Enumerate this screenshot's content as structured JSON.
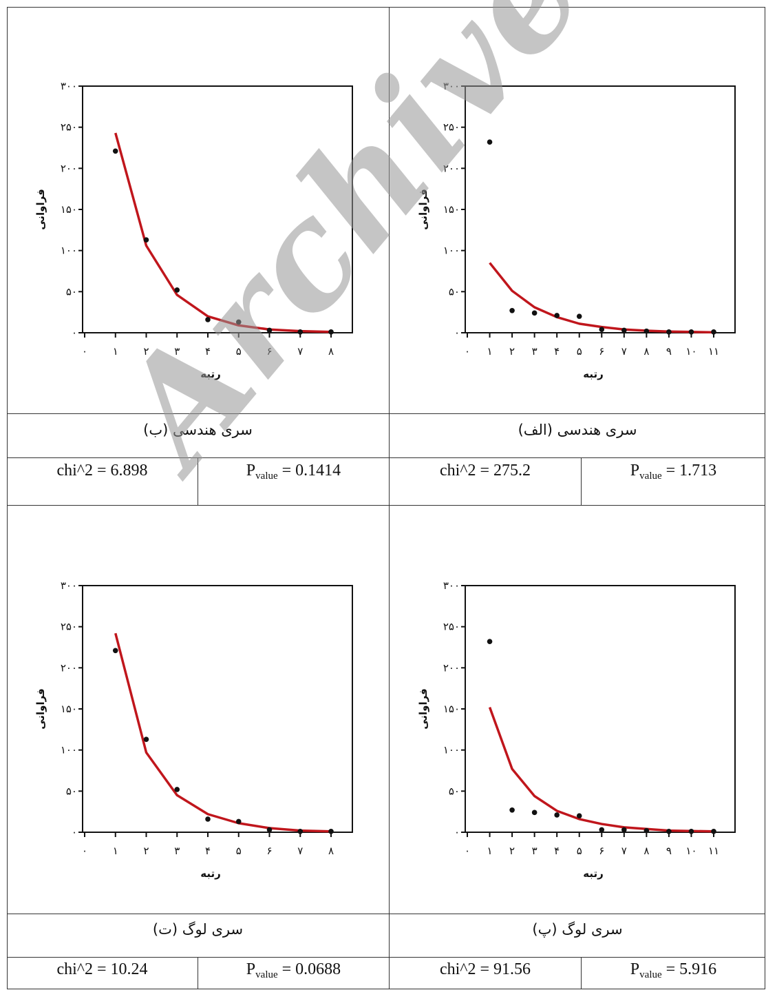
{
  "watermark": "Archive of SID",
  "panels": [
    {
      "id": "alef",
      "caption": "سری هندسی (الف)",
      "chi_label": "chi^2 = 275.2",
      "p_label": "P",
      "p_sub": "value",
      "p_value": " = 1.713"
    },
    {
      "id": "be",
      "caption": "سری هندسی (ب)",
      "chi_label": "chi^2 = 6.898",
      "p_label": "P",
      "p_sub": "value",
      "p_value": " = 0.1414"
    },
    {
      "id": "pe",
      "caption": "سری لوگ (پ)",
      "chi_label": "chi^2 = 91.56",
      "p_label": "P",
      "p_sub": "value",
      "p_value": " = 5.916"
    },
    {
      "id": "te",
      "caption": "سری لوگ (ت)",
      "chi_label": "chi^2 = 10.24",
      "p_label": "P",
      "p_sub": "value",
      "p_value": " = 0.0688"
    }
  ],
  "chart_data": [
    {
      "id": "alef",
      "type": "scatter",
      "xlabel": "رتبه",
      "ylabel": "فراوانی",
      "xlim": [
        0,
        11
      ],
      "ylim": [
        0,
        300
      ],
      "x_ticks": [
        "۰",
        "۱",
        "۲",
        "۳",
        "۴",
        "۵",
        "۶",
        "۷",
        "۸",
        "۹",
        "۱۰",
        "۱۱"
      ],
      "y_ticks": [
        "۰",
        "۵۰",
        "۱۰۰",
        "۱۵۰",
        "۲۰۰",
        "۲۵۰",
        "۳۰۰"
      ],
      "observed": {
        "x": [
          1,
          2,
          3,
          4,
          5,
          6,
          7,
          8,
          9,
          10,
          11
        ],
        "y": [
          232,
          27,
          24,
          21,
          20,
          4,
          3,
          2,
          1,
          1,
          1
        ]
      },
      "fitted": {
        "x": [
          1,
          2,
          3,
          4,
          5,
          6,
          7,
          8,
          9,
          10,
          11
        ],
        "y": [
          85,
          51,
          31,
          19,
          11,
          7,
          4,
          2.5,
          1.5,
          1,
          0.5
        ]
      },
      "line_color": "#c0161c"
    },
    {
      "id": "be",
      "type": "scatter",
      "xlabel": "رتبه",
      "ylabel": "فراوانی",
      "xlim": [
        0,
        8
      ],
      "ylim": [
        0,
        300
      ],
      "x_ticks": [
        "۰",
        "۱",
        "۲",
        "۳",
        "۴",
        "۵",
        "۶",
        "۷",
        "۸"
      ],
      "y_ticks": [
        "۰",
        "۵۰",
        "۱۰۰",
        "۱۵۰",
        "۲۰۰",
        "۲۵۰",
        "۳۰۰"
      ],
      "observed": {
        "x": [
          1,
          2,
          3,
          4,
          5,
          6,
          7,
          8
        ],
        "y": [
          221,
          113,
          52,
          16,
          13,
          3,
          1,
          1
        ]
      },
      "fitted": {
        "x": [
          1,
          2,
          3,
          4,
          5,
          6,
          7,
          8
        ],
        "y": [
          243,
          106,
          46,
          20,
          9,
          4,
          2,
          1
        ]
      },
      "line_color": "#c0161c"
    },
    {
      "id": "pe",
      "type": "scatter",
      "xlabel": "رتبه",
      "ylabel": "فراوانی",
      "xlim": [
        0,
        11
      ],
      "ylim": [
        0,
        300
      ],
      "x_ticks": [
        "۰",
        "۱",
        "۲",
        "۳",
        "۴",
        "۵",
        "۶",
        "۷",
        "۸",
        "۹",
        "۱۰",
        "۱۱"
      ],
      "y_ticks": [
        "۰",
        "۵۰",
        "۱۰۰",
        "۱۵۰",
        "۲۰۰",
        "۲۵۰",
        "۳۰۰"
      ],
      "observed": {
        "x": [
          1,
          2,
          3,
          4,
          5,
          6,
          7,
          8,
          9,
          10,
          11
        ],
        "y": [
          232,
          27,
          24,
          21,
          20,
          3,
          3,
          2,
          1,
          1,
          1
        ]
      },
      "fitted": {
        "x": [
          1,
          2,
          3,
          4,
          5,
          6,
          7,
          8,
          9,
          10,
          11
        ],
        "y": [
          152,
          77,
          44,
          26,
          16,
          10,
          6,
          4,
          2,
          1.5,
          1
        ]
      },
      "line_color": "#c0161c"
    },
    {
      "id": "te",
      "type": "scatter",
      "xlabel": "رتبه",
      "ylabel": "فراوانی",
      "xlim": [
        0,
        8
      ],
      "ylim": [
        0,
        300
      ],
      "x_ticks": [
        "۰",
        "۱",
        "۲",
        "۳",
        "۴",
        "۵",
        "۶",
        "۷",
        "۸"
      ],
      "y_ticks": [
        "۰",
        "۵۰",
        "۱۰۰",
        "۱۵۰",
        "۲۰۰",
        "۲۵۰",
        "۳۰۰"
      ],
      "observed": {
        "x": [
          1,
          2,
          3,
          4,
          5,
          6,
          7,
          8
        ],
        "y": [
          221,
          113,
          52,
          16,
          13,
          3,
          1,
          1
        ]
      },
      "fitted": {
        "x": [
          1,
          2,
          3,
          4,
          5,
          6,
          7,
          8
        ],
        "y": [
          242,
          97,
          45,
          22,
          11,
          5,
          2,
          1
        ]
      },
      "line_color": "#c0161c"
    }
  ]
}
